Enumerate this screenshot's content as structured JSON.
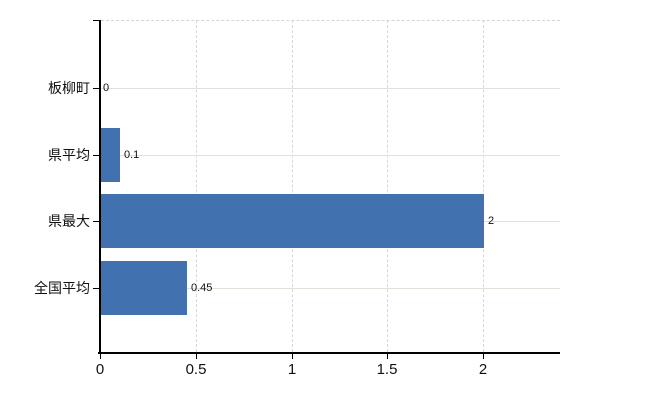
{
  "chart_data": {
    "type": "bar",
    "orientation": "horizontal",
    "title": "",
    "legend": "none",
    "categories": [
      "板柳町",
      "県平均",
      "県最大",
      "全国平均"
    ],
    "values": [
      0,
      0.1,
      2,
      0.45
    ],
    "data_labels": [
      "0",
      "0.1",
      "2",
      "0.45"
    ],
    "x_axis": {
      "min": 0,
      "max": 2.4,
      "ticks": [
        0,
        0.5,
        1,
        1.5,
        2
      ],
      "tick_labels": [
        "0",
        "0.5",
        "1",
        "1.5",
        "2"
      ]
    },
    "grid": {
      "horizontal_style": "solid",
      "vertical_style": "dashed",
      "top_border_style": "dashed"
    },
    "colors": {
      "bar": "#4271b0",
      "horizontal_grid": "#dce3d9",
      "vertical_grid": "#d6d6de",
      "top_border": "#d8d3da",
      "axis": "#000000",
      "text": "#111111",
      "background": "#ffffff"
    }
  }
}
